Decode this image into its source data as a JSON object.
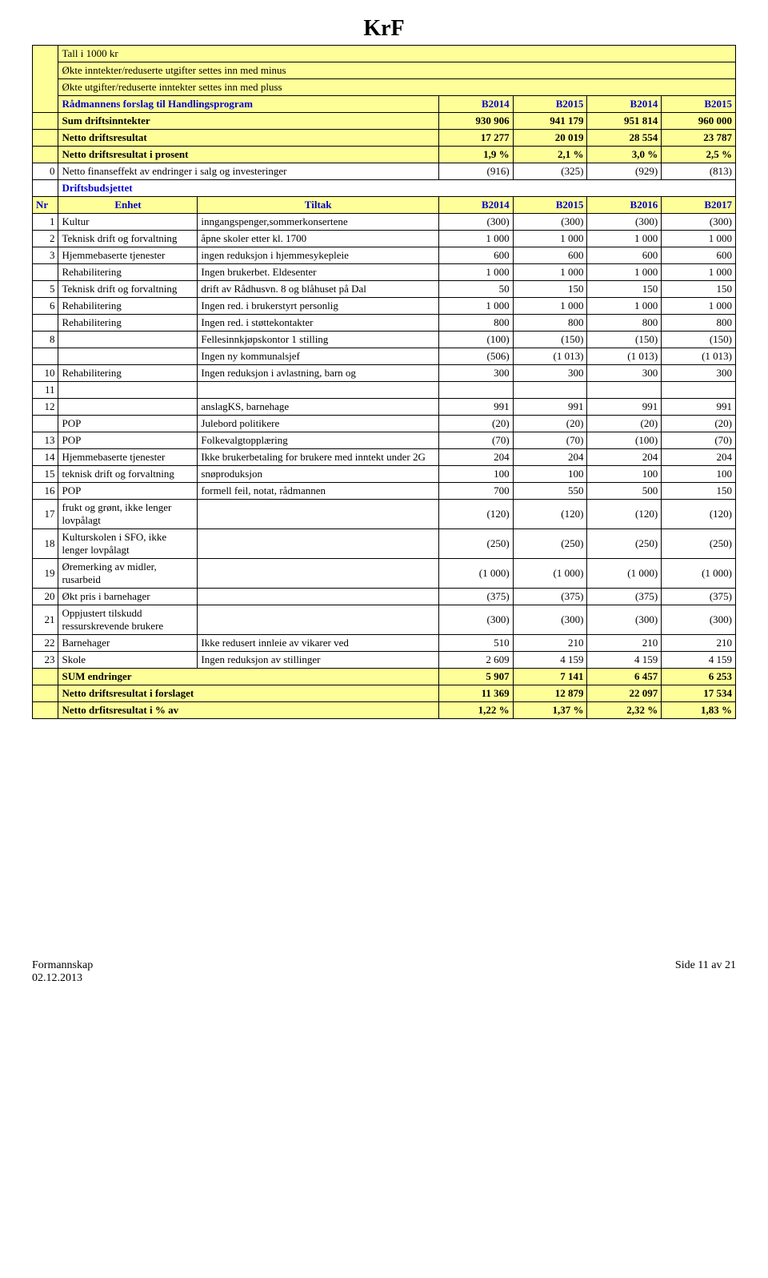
{
  "title": "KrF",
  "header": {
    "line1": "Tall i 1000 kr",
    "line2": "Økte inntekter/reduserte utgifter settes inn med minus",
    "line3": "Økte utgifter/reduserte inntekter settes inn med pluss",
    "forslag": "Rådmannens forslag til Handlingsprogram",
    "years": [
      "B2014",
      "B2015",
      "B2014",
      "B2015"
    ]
  },
  "top_rows": [
    {
      "label": "Sum driftsinntekter",
      "v": [
        "930 906",
        "941 179",
        "951 814",
        "960 000"
      ]
    },
    {
      "label": "Netto driftsresultat",
      "v": [
        "17 277",
        "20 019",
        "28 554",
        "23 787"
      ]
    },
    {
      "label": "Netto driftsresultat i prosent",
      "v": [
        "1,9 %",
        "2,1 %",
        "3,0 %",
        "2,5 %"
      ]
    }
  ],
  "finanseffekt": {
    "nr": "0",
    "label": "Netto finanseffekt av endringer i salg og investeringer",
    "v": [
      "(916)",
      "(325)",
      "(929)",
      "(813)"
    ]
  },
  "driftsbudsjettet": "Driftsbudsjettet",
  "cols": {
    "nr": "Nr",
    "enhet": "Enhet",
    "tiltak": "Tiltak",
    "y": [
      "B2014",
      "B2015",
      "B2016",
      "B2017"
    ]
  },
  "rows": [
    {
      "nr": "1",
      "enhet": "Kultur",
      "tiltak": "inngangspenger,sommerkonsertene",
      "v": [
        "(300)",
        "(300)",
        "(300)",
        "(300)"
      ]
    },
    {
      "nr": "2",
      "enhet": "Teknisk drift og forvaltning",
      "tiltak": "åpne skoler etter kl. 1700",
      "v": [
        "1 000",
        "1 000",
        "1 000",
        "1 000"
      ]
    },
    {
      "nr": "3",
      "enhet": "Hjemmebaserte tjenester",
      "tiltak": "ingen reduksjon i hjemmesykepleie",
      "v": [
        "600",
        "600",
        "600",
        "600"
      ]
    },
    {
      "nr": "",
      "enhet": "Rehabilitering",
      "tiltak": "Ingen brukerbet. Eldesenter",
      "v": [
        "1 000",
        "1 000",
        "1 000",
        "1 000"
      ]
    },
    {
      "nr": "5",
      "enhet": "Teknisk drift og forvaltning",
      "tiltak": "drift av Rådhusvn. 8 og blåhuset på Dal",
      "v": [
        "50",
        "150",
        "150",
        "150"
      ]
    },
    {
      "nr": "6",
      "enhet": "Rehabilitering",
      "tiltak": "Ingen red. i brukerstyrt personlig",
      "v": [
        "1 000",
        "1 000",
        "1 000",
        "1 000"
      ]
    },
    {
      "nr": "",
      "enhet": "Rehabilitering",
      "tiltak": "Ingen red. i støttekontakter",
      "v": [
        "800",
        "800",
        "800",
        "800"
      ]
    },
    {
      "nr": "8",
      "enhet": "",
      "tiltak": "Fellesinnkjøpskontor 1 stilling",
      "v": [
        "(100)",
        "(150)",
        "(150)",
        "(150)"
      ]
    },
    {
      "nr": "",
      "enhet": "",
      "tiltak": "Ingen ny kommunalsjef",
      "v": [
        "(506)",
        "(1 013)",
        "(1 013)",
        "(1 013)"
      ]
    },
    {
      "nr": "10",
      "enhet": "Rehabilitering",
      "tiltak": "Ingen reduksjon i avlastning, barn og",
      "v": [
        "300",
        "300",
        "300",
        "300"
      ]
    },
    {
      "nr": "11",
      "enhet": "",
      "tiltak": "",
      "v": [
        "",
        "",
        "",
        ""
      ]
    },
    {
      "nr": "12",
      "enhet": "",
      "tiltak": "anslagKS, barnehage",
      "v": [
        "991",
        "991",
        "991",
        "991"
      ]
    },
    {
      "nr": "",
      "enhet": "POP",
      "tiltak": "Julebord          politikere",
      "v": [
        "(20)",
        "(20)",
        "(20)",
        "(20)"
      ]
    },
    {
      "nr": "13",
      "enhet": "POP",
      "tiltak": "Folkevalgtopplæring",
      "v": [
        "(70)",
        "(70)",
        "(100)",
        "(70)"
      ]
    },
    {
      "nr": "14",
      "enhet": "Hjemmebaserte tjenester",
      "tiltak": "Ikke brukerbetaling for brukere med inntekt under 2G",
      "v": [
        "204",
        "204",
        "204",
        "204"
      ]
    },
    {
      "nr": "15",
      "enhet": "teknisk drift og forvaltning",
      "tiltak": "snøproduksjon",
      "v": [
        "100",
        "100",
        "100",
        "100"
      ]
    },
    {
      "nr": "16",
      "enhet": "POP",
      "tiltak": "formell feil, notat, rådmannen",
      "v": [
        "700",
        "550",
        "500",
        "150"
      ]
    },
    {
      "nr": "17",
      "enhet": "frukt og grønt, ikke lenger lovpålagt",
      "tiltak": "",
      "v": [
        "(120)",
        "(120)",
        "(120)",
        "(120)"
      ]
    },
    {
      "nr": "18",
      "enhet": "Kulturskolen i SFO, ikke lenger lovpålagt",
      "tiltak": "",
      "v": [
        "(250)",
        "(250)",
        "(250)",
        "(250)"
      ]
    },
    {
      "nr": "19",
      "enhet": "Øremerking av midler, rusarbeid",
      "tiltak": "",
      "v": [
        "(1 000)",
        "(1 000)",
        "(1 000)",
        "(1 000)"
      ]
    },
    {
      "nr": "20",
      "enhet": "Økt pris i barnehager",
      "tiltak": "",
      "v": [
        "(375)",
        "(375)",
        "(375)",
        "(375)"
      ]
    },
    {
      "nr": "21",
      "enhet": "Oppjustert tilskudd ressurskrevende brukere",
      "tiltak": "",
      "v": [
        "(300)",
        "(300)",
        "(300)",
        "(300)"
      ]
    },
    {
      "nr": "22",
      "enhet": "Barnehager",
      "tiltak": "Ikke redusert innleie av vikarer ved",
      "v": [
        "510",
        "210",
        "210",
        "210"
      ]
    },
    {
      "nr": "23",
      "enhet": "Skole",
      "tiltak": "Ingen reduksjon av stillinger",
      "v": [
        "2 609",
        "4 159",
        "4 159",
        "4 159"
      ]
    }
  ],
  "sum_rows": [
    {
      "label": "SUM endringer",
      "v": [
        "5 907",
        "7 141",
        "6 457",
        "6 253"
      ],
      "bold": true
    },
    {
      "label": "Netto driftsresultat i forslaget",
      "v": [
        "11 369",
        "12 879",
        "22 097",
        "17 534"
      ],
      "bold": true
    },
    {
      "label": "Netto drfitsresultat i % av",
      "v": [
        "1,22 %",
        "1,37 %",
        "2,32 %",
        "1,83 %"
      ],
      "bold": true
    }
  ],
  "footer": {
    "left1": "Formannskap",
    "left2": "02.12.2013",
    "right": "Side 11 av 21"
  },
  "colors": {
    "yellow": "#ffff99",
    "blue": "#0000cd"
  }
}
